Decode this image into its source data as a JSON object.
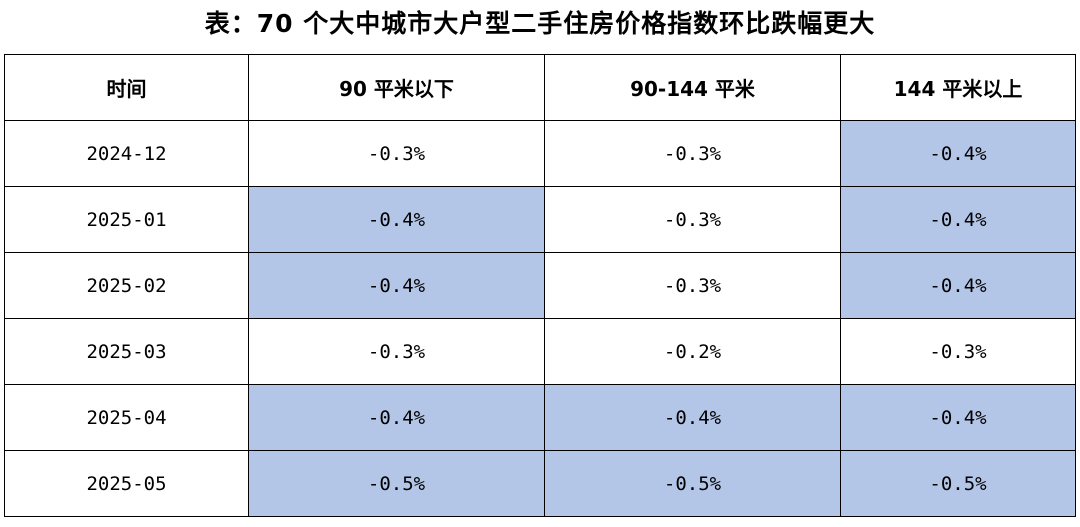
{
  "title": "表：70 个大中城市大户型二手住房价格指数环比跌幅更大",
  "colors": {
    "highlight": "#b4c6e7",
    "border": "#000000",
    "background": "#ffffff"
  },
  "table": {
    "headers": [
      "时间",
      "90 平米以下",
      "90-144 平米",
      "144 平米以上"
    ],
    "rows": [
      {
        "cells": [
          "2024-12",
          "-0.3%",
          "-0.3%",
          "-0.4%"
        ],
        "highlight": [
          false,
          false,
          false,
          true
        ]
      },
      {
        "cells": [
          "2025-01",
          "-0.4%",
          "-0.3%",
          "-0.4%"
        ],
        "highlight": [
          false,
          true,
          false,
          true
        ]
      },
      {
        "cells": [
          "2025-02",
          "-0.4%",
          "-0.3%",
          "-0.4%"
        ],
        "highlight": [
          false,
          true,
          false,
          true
        ]
      },
      {
        "cells": [
          "2025-03",
          "-0.3%",
          "-0.2%",
          "-0.3%"
        ],
        "highlight": [
          false,
          false,
          false,
          false
        ]
      },
      {
        "cells": [
          "2025-04",
          "-0.4%",
          "-0.4%",
          "-0.4%"
        ],
        "highlight": [
          false,
          true,
          true,
          true
        ]
      },
      {
        "cells": [
          "2025-05",
          "-0.5%",
          "-0.5%",
          "-0.5%"
        ],
        "highlight": [
          false,
          true,
          true,
          true
        ]
      }
    ]
  }
}
